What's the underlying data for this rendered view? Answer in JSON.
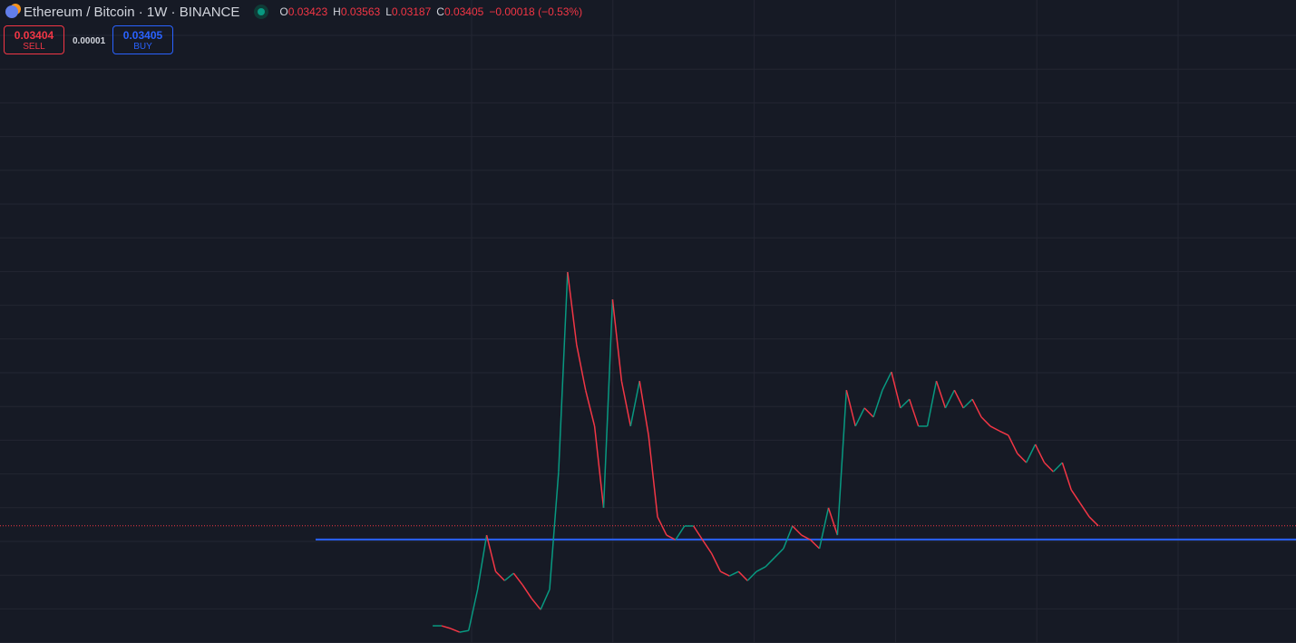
{
  "header": {
    "symbol": "Ethereum / Bitcoin · 1W · BINANCE",
    "ohlc": [
      {
        "label": "O",
        "value": "0.03423"
      },
      {
        "label": "H",
        "value": "0.03563"
      },
      {
        "label": "L",
        "value": "0.03187"
      },
      {
        "label": "C",
        "value": "0.03405"
      }
    ],
    "change": "−0.00018 (−0.53%)",
    "sell": {
      "price": "0.03404",
      "label": "SELL"
    },
    "spread": "0.00001",
    "buy": {
      "price": "0.03405",
      "label": "BUY"
    }
  },
  "chart_data": {
    "type": "line",
    "values": [
      0.0044,
      0.0036,
      0.0025,
      0.003,
      0.0152,
      0.0313,
      0.0205,
      0.0178,
      0.02,
      0.0165,
      0.0125,
      0.0092,
      0.0152,
      0.0501,
      0.1093,
      0.0878,
      0.0743,
      0.0636,
      0.0394,
      0.1012,
      0.077,
      0.0636,
      0.077,
      0.0609,
      0.0367,
      0.0313,
      0.0299,
      0.034,
      0.034,
      0.0299,
      0.0259,
      0.0205,
      0.0192,
      0.0205,
      0.0178,
      0.0205,
      0.0219,
      0.0246,
      0.0273,
      0.034,
      0.0313,
      0.0299,
      0.0273,
      0.0394,
      0.0313,
      0.0743,
      0.0636,
      0.069,
      0.0663,
      0.0743,
      0.0797,
      0.069,
      0.0716,
      0.0636,
      0.0636,
      0.077,
      0.069,
      0.0743,
      0.069,
      0.0716,
      0.0663,
      0.0636,
      0.0622,
      0.0609,
      0.0555,
      0.0528,
      0.0582,
      0.0528,
      0.0501,
      0.0528,
      0.0447,
      0.0407,
      0.0367,
      0.03405
    ],
    "up_color": "#089981",
    "down_color": "#f23645",
    "hline": 0.03,
    "hline_color": "#2962ff",
    "ylim": [
      -0.0007,
      0.19
    ]
  }
}
